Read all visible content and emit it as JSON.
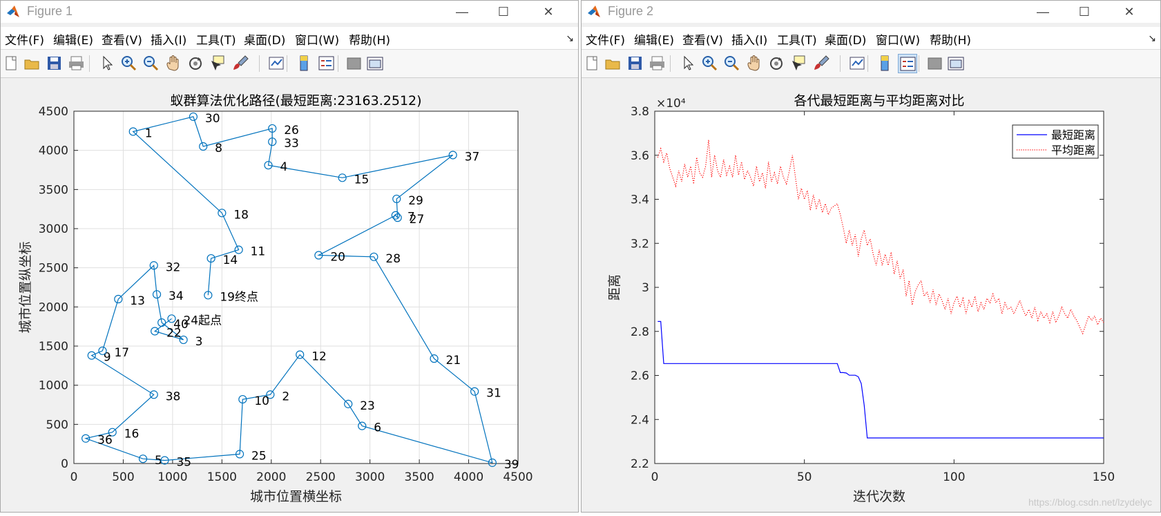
{
  "windows": [
    {
      "title": "Figure 1",
      "menu": [
        "文件(F)",
        "编辑(E)",
        "查看(V)",
        "插入(I)",
        "工具(T)",
        "桌面(D)",
        "窗口(W)",
        "帮助(H)"
      ]
    },
    {
      "title": "Figure 2",
      "menu": [
        "文件(F)",
        "编辑(E)",
        "查看(V)",
        "插入(I)",
        "工具(T)",
        "桌面(D)",
        "窗口(W)",
        "帮助(H)"
      ]
    }
  ],
  "toolbar_icons": [
    "new-figure-icon",
    "open-file-icon",
    "save-icon",
    "print-icon",
    "pointer-icon",
    "zoom-in-icon",
    "zoom-out-icon",
    "pan-icon",
    "rotate-icon",
    "data-cursor-icon",
    "brush-icon",
    "link-plot-icon",
    "colorbar-icon",
    "legend-icon",
    "hide-plot-tools-icon",
    "show-plot-tools-icon"
  ],
  "watermark": "https://blog.csdn.net/lzydelyc",
  "colors": {
    "route": "#0072bd",
    "best": "#0000ff",
    "mean": "#ff0000",
    "axes_bg": "#ffffff",
    "figure_bg": "#f0f0f0"
  },
  "chart_data": [
    {
      "type": "scatter",
      "title": "蚁群算法优化路径(最短距离:23163.2512)",
      "xlabel": "城市位置横坐标",
      "ylabel": "城市位置纵坐标",
      "xlim": [
        0,
        4500
      ],
      "ylim": [
        0,
        4500
      ],
      "xticks": [
        0,
        500,
        1000,
        1500,
        2000,
        2500,
        3000,
        3500,
        4000,
        4500
      ],
      "yticks": [
        0,
        500,
        1000,
        1500,
        2000,
        2500,
        3000,
        3500,
        4000,
        4500
      ],
      "grid": true,
      "cities": [
        {
          "id": "1",
          "x": 600,
          "y": 4240
        },
        {
          "id": "2",
          "x": 1990,
          "y": 880
        },
        {
          "id": "3",
          "x": 1110,
          "y": 1580
        },
        {
          "id": "4",
          "x": 1970,
          "y": 3810
        },
        {
          "id": "5",
          "x": 700,
          "y": 60
        },
        {
          "id": "6",
          "x": 2920,
          "y": 480
        },
        {
          "id": "7",
          "x": 3260,
          "y": 3170
        },
        {
          "id": "8",
          "x": 1310,
          "y": 4050
        },
        {
          "id": "9",
          "x": 180,
          "y": 1380
        },
        {
          "id": "10",
          "x": 1710,
          "y": 820
        },
        {
          "id": "11",
          "x": 1670,
          "y": 2730
        },
        {
          "id": "12",
          "x": 2290,
          "y": 1390
        },
        {
          "id": "13",
          "x": 450,
          "y": 2100
        },
        {
          "id": "14",
          "x": 1390,
          "y": 2620
        },
        {
          "id": "15",
          "x": 2720,
          "y": 3650
        },
        {
          "id": "16",
          "x": 390,
          "y": 400
        },
        {
          "id": "17",
          "x": 290,
          "y": 1440
        },
        {
          "id": "18",
          "x": 1500,
          "y": 3200
        },
        {
          "id": "19",
          "x": 1360,
          "y": 2150
        },
        {
          "id": "20",
          "x": 2480,
          "y": 2660
        },
        {
          "id": "21",
          "x": 3650,
          "y": 1340
        },
        {
          "id": "22",
          "x": 820,
          "y": 1690
        },
        {
          "id": "23",
          "x": 2780,
          "y": 760
        },
        {
          "id": "24",
          "x": 990,
          "y": 1850
        },
        {
          "id": "25",
          "x": 1680,
          "y": 120
        },
        {
          "id": "26",
          "x": 2010,
          "y": 4280
        },
        {
          "id": "27",
          "x": 3280,
          "y": 3140
        },
        {
          "id": "28",
          "x": 3040,
          "y": 2640
        },
        {
          "id": "29",
          "x": 3270,
          "y": 3380
        },
        {
          "id": "30",
          "x": 1210,
          "y": 4430
        },
        {
          "id": "31",
          "x": 4060,
          "y": 920
        },
        {
          "id": "32",
          "x": 810,
          "y": 2530
        },
        {
          "id": "33",
          "x": 2010,
          "y": 4110
        },
        {
          "id": "34",
          "x": 840,
          "y": 2160
        },
        {
          "id": "35",
          "x": 920,
          "y": 40
        },
        {
          "id": "36",
          "x": 120,
          "y": 320
        },
        {
          "id": "37",
          "x": 3840,
          "y": 3940
        },
        {
          "id": "38",
          "x": 810,
          "y": 880
        },
        {
          "id": "39",
          "x": 4240,
          "y": 10
        },
        {
          "id": "40",
          "x": 890,
          "y": 1800
        }
      ],
      "route": [
        "24",
        "22",
        "3",
        "40",
        "34",
        "32",
        "13",
        "17",
        "9",
        "38",
        "16",
        "36",
        "5",
        "35",
        "25",
        "10",
        "2",
        "12",
        "23",
        "6",
        "39",
        "31",
        "21",
        "28",
        "20",
        "7",
        "27",
        "29",
        "37",
        "15",
        "4",
        "33",
        "26",
        "8",
        "30",
        "1",
        "18",
        "11",
        "14",
        "19"
      ],
      "label_suffix": {
        "24": "起点",
        "19": "终点"
      }
    },
    {
      "type": "line",
      "title": "各代最短距离与平均距离对比",
      "xlabel": "迭代次数",
      "ylabel": "距离",
      "exponent_label": "×10⁴",
      "xlim": [
        0,
        150
      ],
      "ylim": [
        2.2,
        3.8
      ],
      "xticks": [
        0,
        50,
        100,
        150
      ],
      "yticks": [
        2.2,
        2.4,
        2.6,
        2.8,
        3,
        3.2,
        3.4,
        3.6,
        3.8
      ],
      "legend_position": "top-right",
      "series": [
        {
          "name": "最短距离",
          "style": "solid",
          "x": [
            1,
            2,
            3,
            60,
            61,
            62,
            63,
            64,
            65,
            66,
            67,
            68,
            69,
            70,
            71,
            72,
            150
          ],
          "y": [
            2.845,
            2.845,
            2.654,
            2.654,
            2.654,
            2.613,
            2.613,
            2.611,
            2.601,
            2.601,
            2.601,
            2.594,
            2.563,
            2.464,
            2.316,
            2.316,
            2.316
          ]
        },
        {
          "name": "平均距离",
          "style": "dotted",
          "x": [
            1,
            2,
            3,
            4,
            5,
            6,
            7,
            8,
            9,
            10,
            11,
            12,
            13,
            14,
            15,
            16,
            17,
            18,
            19,
            20,
            21,
            22,
            23,
            24,
            25,
            26,
            27,
            28,
            29,
            30,
            31,
            32,
            33,
            34,
            35,
            36,
            37,
            38,
            39,
            40,
            41,
            42,
            43,
            44,
            45,
            46,
            47,
            48,
            49,
            50,
            51,
            52,
            53,
            54,
            55,
            56,
            57,
            58,
            59,
            60,
            61,
            62,
            63,
            64,
            65,
            66,
            67,
            68,
            69,
            70,
            71,
            72,
            73,
            74,
            75,
            76,
            77,
            78,
            79,
            80,
            81,
            82,
            83,
            84,
            85,
            86,
            87,
            88,
            89,
            90,
            91,
            92,
            93,
            94,
            95,
            96,
            97,
            98,
            99,
            100,
            101,
            102,
            103,
            104,
            105,
            106,
            107,
            108,
            109,
            110,
            111,
            112,
            113,
            114,
            115,
            116,
            117,
            118,
            119,
            120,
            121,
            122,
            123,
            124,
            125,
            126,
            127,
            128,
            129,
            130,
            131,
            132,
            133,
            134,
            135,
            136,
            137,
            138,
            139,
            140,
            141,
            142,
            143,
            144,
            145,
            146,
            147,
            148,
            149,
            150
          ],
          "y": [
            3.59,
            3.63,
            3.57,
            3.61,
            3.54,
            3.5,
            3.46,
            3.53,
            3.48,
            3.56,
            3.5,
            3.55,
            3.47,
            3.59,
            3.52,
            3.5,
            3.55,
            3.67,
            3.5,
            3.6,
            3.53,
            3.5,
            3.58,
            3.51,
            3.55,
            3.5,
            3.6,
            3.51,
            3.57,
            3.49,
            3.53,
            3.5,
            3.46,
            3.55,
            3.48,
            3.52,
            3.45,
            3.57,
            3.48,
            3.52,
            3.47,
            3.55,
            3.5,
            3.47,
            3.53,
            3.6,
            3.5,
            3.4,
            3.45,
            3.4,
            3.44,
            3.35,
            3.42,
            3.36,
            3.4,
            3.34,
            3.38,
            3.33,
            3.36,
            3.37,
            3.38,
            3.33,
            3.27,
            3.2,
            3.26,
            3.19,
            3.24,
            3.14,
            3.22,
            3.26,
            3.19,
            3.22,
            3.15,
            3.1,
            3.17,
            3.1,
            3.15,
            3.1,
            3.16,
            3.06,
            3.12,
            3.04,
            3.08,
            2.96,
            3.03,
            2.92,
            2.98,
            3.01,
            3.03,
            2.96,
            2.98,
            2.93,
            2.99,
            2.92,
            2.97,
            2.94,
            2.9,
            2.95,
            2.88,
            2.93,
            2.96,
            2.91,
            2.95,
            2.88,
            2.94,
            2.91,
            2.96,
            2.89,
            2.93,
            2.9,
            2.95,
            2.93,
            2.97,
            2.93,
            2.95,
            2.88,
            2.93,
            2.9,
            2.91,
            2.88,
            2.91,
            2.94,
            2.9,
            2.87,
            2.9,
            2.86,
            2.91,
            2.85,
            2.89,
            2.86,
            2.88,
            2.84,
            2.89,
            2.84,
            2.87,
            2.91,
            2.88,
            2.86,
            2.9,
            2.87,
            2.85,
            2.82,
            2.79,
            2.83,
            2.87,
            2.85,
            2.87,
            2.83,
            2.86,
            2.84
          ]
        }
      ]
    }
  ]
}
